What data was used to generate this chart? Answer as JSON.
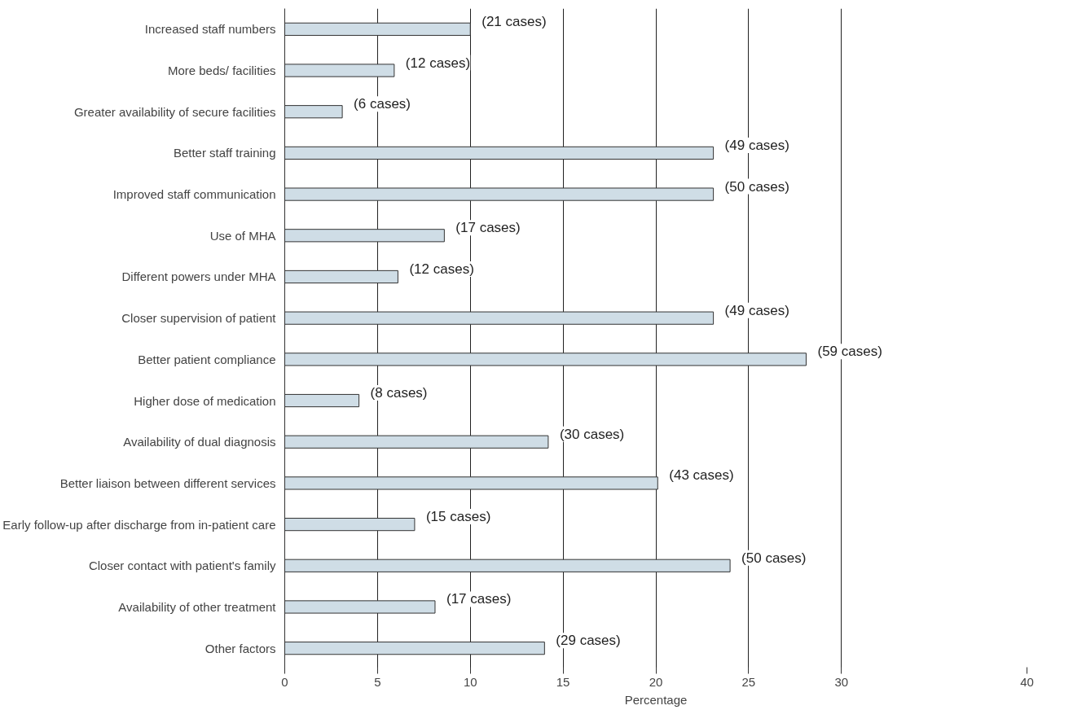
{
  "chart_data": {
    "type": "bar",
    "orientation": "horizontal",
    "xlabel": "Percentage",
    "categories": [
      "Increased staff numbers",
      "More beds/ facilities",
      "Greater availability of secure facilities",
      "Better staff training",
      "Improved staff communication",
      "Use of MHA",
      "Different powers under MHA",
      "Closer supervision of patient",
      "Better patient compliance",
      "Higher dose of medication",
      "Availability of dual diagnosis",
      "Better liaison between different services",
      "Early follow-up after discharge from in-patient care",
      "Closer contact with patient's family",
      "Availability of other treatment",
      "Other factors"
    ],
    "values": [
      10.0,
      5.9,
      3.1,
      23.1,
      23.1,
      8.6,
      6.1,
      23.1,
      28.1,
      4.0,
      14.2,
      20.1,
      7.0,
      24.0,
      8.1,
      14.0
    ],
    "annotations": [
      {
        "text": "(21 cases)",
        "x": 10.0,
        "y": "Increased staff numbers"
      },
      {
        "text": "(12 cases)",
        "x": 5.9,
        "y": "More beds/ facilities"
      },
      {
        "text": "(6 cases)",
        "x": 3.1,
        "y": "Greater availability of secure facilities"
      },
      {
        "text": "(49 cases)",
        "x": 23.1,
        "y": "Better staff training"
      },
      {
        "text": "(50 cases)",
        "x": 23.1,
        "y": "Improved staff communication"
      },
      {
        "text": "(17 cases)",
        "x": 8.6,
        "y": "Use of MHA"
      },
      {
        "text": "(12 cases)",
        "x": 6.1,
        "y": "Different powers under MHA"
      },
      {
        "text": "(49 cases)",
        "x": 23.1,
        "y": "Closer supervision of patient"
      },
      {
        "text": "(59 cases)",
        "x": 28.1,
        "y": "Better patient compliance"
      },
      {
        "text": "(8 cases)",
        "x": 4.0,
        "y": "Higher dose of medication"
      },
      {
        "text": "(30 cases)",
        "x": 14.2,
        "y": "Availability of dual diagnosis"
      },
      {
        "text": "(43 cases)",
        "x": 20.1,
        "y": "Better liaison between different services"
      },
      {
        "text": "(15 cases)",
        "x": 7.0,
        "y": "Early follow-up after discharge from in-patient care"
      },
      {
        "text": "(50 cases)",
        "x": 24.0,
        "y": "Closer contact with patient's family"
      },
      {
        "text": "(17 cases)",
        "x": 8.1,
        "y": "Availability of other treatment"
      },
      {
        "text": "(29 cases)",
        "x": 14.0,
        "y": "Other factors"
      }
    ],
    "color": "#cfdde6",
    "xlim": [
      0,
      40
    ],
    "xticks": [
      0,
      5,
      10,
      15,
      20,
      25,
      30,
      40
    ],
    "grid": "x"
  }
}
